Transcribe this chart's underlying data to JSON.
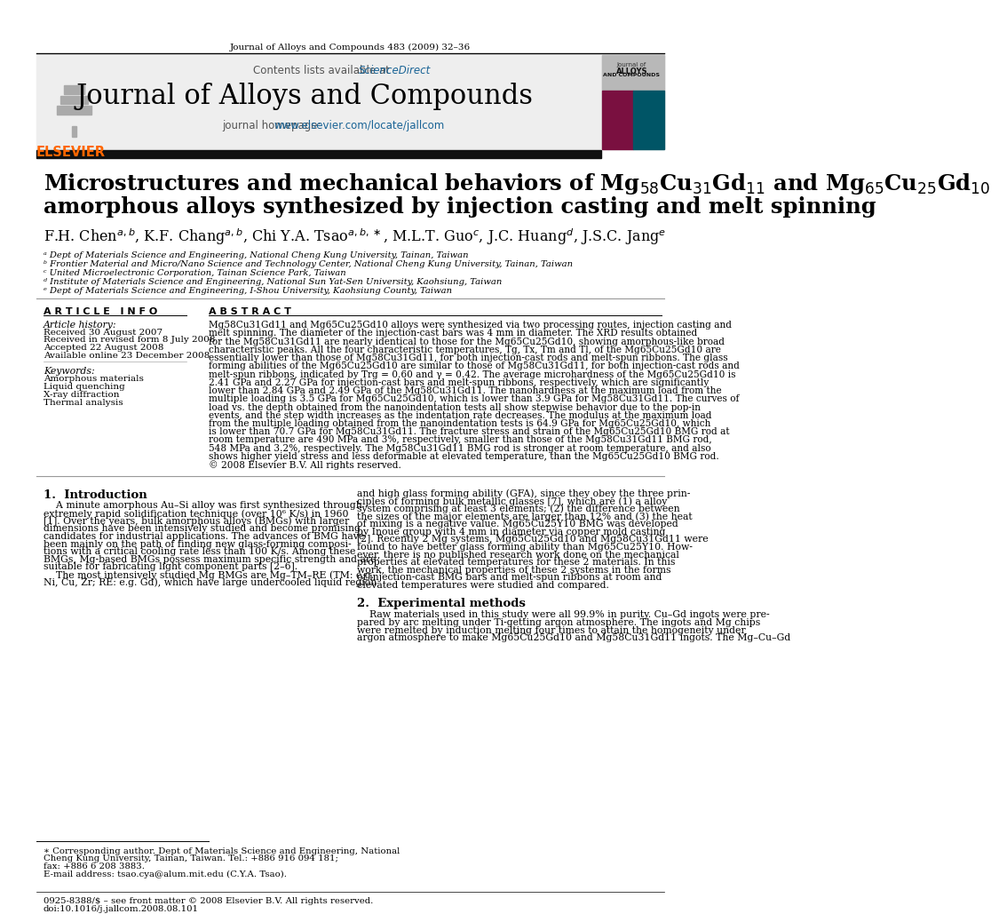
{
  "journal_header_text": "Journal of Alloys and Compounds 483 (2009) 32–36",
  "contents_text": "Contents lists available at",
  "sciencedirect_text": "ScienceDirect",
  "journal_name": "Journal of Alloys and Compounds",
  "journal_homepage_label": "journal homepage:",
  "journal_homepage_url": "www.elsevier.com/locate/jallcom",
  "title_line1": "Microstructures and mechanical behaviors of Mg$_{58}$Cu$_{31}$Gd$_{11}$ and Mg$_{65}$Cu$_{25}$Gd$_{10}$",
  "title_line2": "amorphous alloys synthesized by injection casting and melt spinning",
  "affil_a": "ᵃ Dept of Materials Science and Engineering, National Cheng Kung University, Tainan, Taiwan",
  "affil_b": "ᵇ Frontier Material and Micro/Nano Science and Technology Center, National Cheng Kung University, Tainan, Taiwan",
  "affil_c": "ᶜ United Microelectronic Corporation, Tainan Science Park, Taiwan",
  "affil_d": "ᵈ Institute of Materials Science and Engineering, National Sun Yat-Sen University, Kaohsiung, Taiwan",
  "affil_e": "ᵉ Dept of Materials Science and Engineering, I-Shou University, Kaohsiung County, Taiwan",
  "article_info_header": "A R T I C L E   I N F O",
  "article_history_header": "Article history:",
  "received": "Received 30 August 2007",
  "received_revised": "Received in revised form 8 July 2008",
  "accepted": "Accepted 22 August 2008",
  "available": "Available online 23 December 2008",
  "keywords_header": "Keywords:",
  "keyword1": "Amorphous materials",
  "keyword2": "Liquid quenching",
  "keyword3": "X-ray diffraction",
  "keyword4": "Thermal analysis",
  "abstract_header": "A B S T R A C T",
  "abstract_text": "Mg58Cu31Gd11 and Mg65Cu25Gd10 alloys were synthesized via two processing routes, injection casting and\nmelt spinning. The diameter of the injection-cast bars was 4 mm in diameter. The XRD results obtained\nfor the Mg58Cu31Gd11 are nearly identical to those for the Mg65Cu25Gd10, showing amorphous-like broad\ncharacteristic peaks. All the four characteristic temperatures, Tg, Tx, Tm and Tl, of the Mg65Cu25Gd10 are\nessentially lower than those of Mg58Cu31Gd11, for both injection-cast rods and melt-spun ribbons. The glass\nforming abilities of the Mg65Cu25Gd10 are similar to those of Mg58Cu31Gd11, for both injection-cast rods and\nmelt-spun ribbons, indicated by Trg = 0.60 and γ = 0.42. The average microhardness of the Mg65Cu25Gd10 is\n2.41 GPa and 2.27 GPa for injection-cast bars and melt-spun ribbons, respectively, which are significantly\nlower than 2.84 GPa and 2.49 GPa of the Mg58Cu31Gd11. The nanohardness at the maximum load from the\nmultiple loading is 3.5 GPa for Mg65Cu25Gd10, which is lower than 3.9 GPa for Mg58Cu31Gd11. The curves of\nload vs. the depth obtained from the nanoindentation tests all show stepwise behavior due to the pop-in\nevents, and the step width increases as the indentation rate decreases. The modulus at the maximum load\nfrom the multiple loading obtained from the nanoindentation tests is 64.9 GPa for Mg65Cu25Gd10, which\nis lower than 70.7 GPa for Mg58Cu31Gd11. The fracture stress and strain of the Mg65Cu25Gd10 BMG rod at\nroom temperature are 490 MPa and 3%, respectively, smaller than those of the Mg58Cu31Gd11 BMG rod,\n548 MPa and 3.2%, respectively. The Mg58Cu31Gd11 BMG rod is stronger at room temperature, and also\nshows higher yield stress and less deformable at elevated temperature, than the Mg65Cu25Gd10 BMG rod.\n© 2008 Elsevier B.V. All rights reserved.",
  "section1_header": "1.  Introduction",
  "intro_text_left": "    A minute amorphous Au–Si alloy was first synthesized through\nextremely rapid solidification technique (over 10⁶ K/s) in 1960\n[1]. Over the years, bulk amorphous alloys (BMGs) with larger\ndimensions have been intensively studied and become promising\ncandidates for industrial applications. The advances of BMG have\nbeen mainly on the path of finding new glass-forming composi-\ntions with a critical cooling rate less than 100 K/s. Among these\nBMGs, Mg-based BMGs possess maximum specific strength and are\nsuitable for fabricating light component parts [2–6].\n    The most intensively studied Mg BMGs are Mg–TM–RE (TM: e.g.\nNi, Cu, Zr; RE: e.g. Gd), which have large undercooled liquid region",
  "intro_text_right": "and high glass forming ability (GFA), since they obey the three prin-\nciples of forming bulk metallic glasses [7], which are (1) a alloy\nsystem comprising at least 3 elements; (2) the difference between\nthe sizes of the major elements are larger than 12% and (3) the heat\nof mixing is a negative value. Mg65Cu25Y10 BMG was developed\nby Inoue group with 4 mm in diameter via copper mold casting\n[2]. Recently 2 Mg systems, Mg65Cu25Gd10 and Mg58Cu31Gd11 were\nfound to have better glass forming ability than Mg65Cu25Y10. How-\never, there is no published research work done on the mechanical\nproperties at elevated temperatures for these 2 materials. In this\nwork, the mechanical properties of these 2 systems in the forms\nof injection-cast BMG bars and melt-spun ribbons at room and\nelevated temperatures were studied and compared.",
  "section2_header": "2.  Experimental methods",
  "exp_text_right": "    Raw materials used in this study were all 99.9% in purity. Cu–Gd ingots were pre-\npared by arc melting under Ti-getting argon atmosphere. The ingots and Mg chips\nwere remelted by induction melting four times to attain the homogeneity under\nargon atmosphere to make Mg65Cu25Gd10 and Mg58Cu31Gd11 ingots. The Mg–Cu–Gd",
  "footnote_star": "∗ Corresponding author. Dept of Materials Science and Engineering, National\nCheng Kung University, Tainan, Taiwan. Tel.: +886 916 094 181;\nfax: +886 6 208 3883.",
  "footnote_email": "E-mail address: tsao.cya@alum.mit.edu (C.Y.A. Tsao).",
  "footer_issn": "0925-8388/$ – see front matter © 2008 Elsevier B.V. All rights reserved.",
  "footer_doi": "doi:10.1016/j.jallcom.2008.08.101",
  "bg_color": "#ffffff",
  "elsevier_orange": "#FF6600",
  "sciencedirect_blue": "#1a6496",
  "url_blue": "#1a6496",
  "header_bg": "#e8e8e8"
}
